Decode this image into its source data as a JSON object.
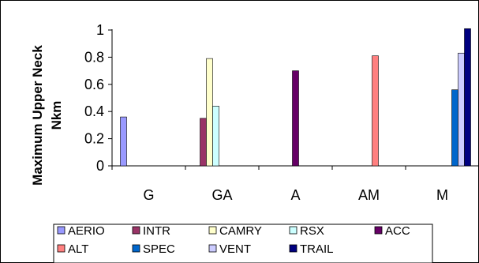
{
  "chart_data": {
    "type": "bar",
    "title": "",
    "xlabel": "",
    "ylabel": "Maximum Upper Neck Nkm",
    "ylabel_lines": [
      "Maximum Upper Neck",
      "Nkm"
    ],
    "ylim": [
      0,
      1
    ],
    "yticks": [
      "0",
      "0.2",
      "0.4",
      "0.6",
      "0.8",
      "1"
    ],
    "ytick_values": [
      0,
      0.2,
      0.4,
      0.6,
      0.8,
      1
    ],
    "grid": false,
    "legend_position": "bottom",
    "categories": [
      "G",
      "GA",
      "A",
      "AM",
      "M"
    ],
    "series": [
      {
        "name": "AERIO",
        "color": "#9999ff",
        "values": [
          0.36,
          null,
          null,
          null,
          null
        ]
      },
      {
        "name": "INTR",
        "color": "#993366",
        "values": [
          null,
          0.35,
          null,
          null,
          null
        ]
      },
      {
        "name": "CAMRY",
        "color": "#ffffcc",
        "values": [
          null,
          0.79,
          null,
          null,
          null
        ]
      },
      {
        "name": "RSX",
        "color": "#ccffff",
        "values": [
          null,
          0.44,
          null,
          null,
          null
        ]
      },
      {
        "name": "ACC",
        "color": "#660066",
        "values": [
          null,
          null,
          0.7,
          null,
          null
        ]
      },
      {
        "name": "ALT",
        "color": "#ff8080",
        "values": [
          null,
          null,
          null,
          0.81,
          null
        ]
      },
      {
        "name": "SPEC",
        "color": "#0066cc",
        "values": [
          null,
          null,
          null,
          null,
          0.56
        ]
      },
      {
        "name": "VENT",
        "color": "#ccccff",
        "values": [
          null,
          null,
          null,
          null,
          0.83
        ]
      },
      {
        "name": "TRAIL",
        "color": "#000080",
        "values": [
          null,
          null,
          null,
          null,
          1.01
        ]
      }
    ]
  }
}
